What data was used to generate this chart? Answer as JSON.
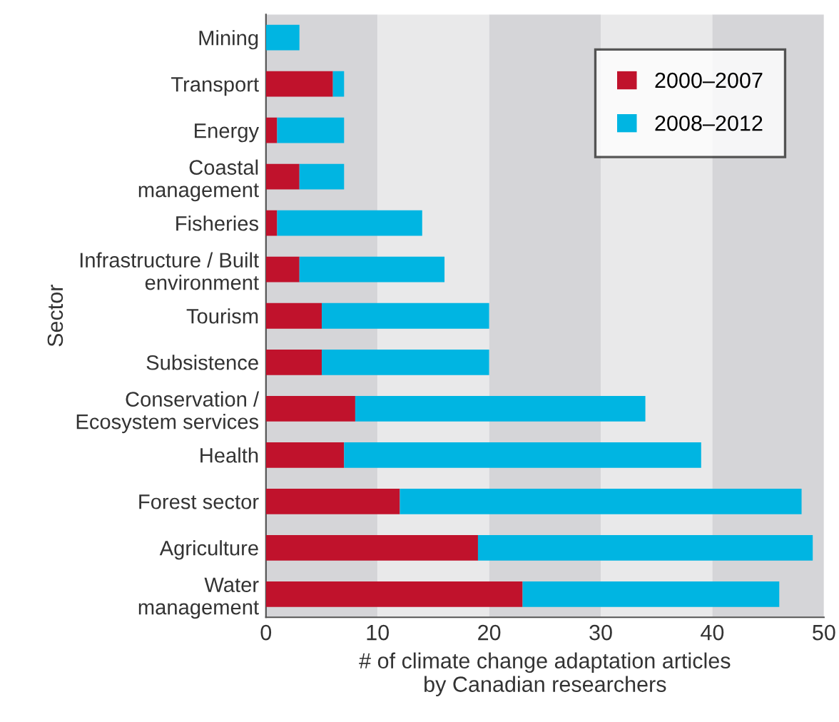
{
  "chart_data": {
    "type": "bar",
    "orientation": "horizontal",
    "stacked": true,
    "xlabel": "# of climate change adaptation articles\nby Canadian researchers",
    "ylabel": "Sector",
    "categories": [
      "Mining",
      "Transport",
      "Energy",
      "Coastal\nmanagement",
      "Fisheries",
      "Infrastructure / Built\nenvironment",
      "Tourism",
      "Subsistence",
      "Conservation /\nEcosystem services",
      "Health",
      "Forest sector",
      "Agriculture",
      "Water\nmanagement"
    ],
    "series": [
      {
        "name": "2000–2007",
        "color": "#c0122c",
        "values": [
          0,
          6,
          1,
          3,
          1,
          3,
          5,
          5,
          8,
          7,
          12,
          19,
          23
        ]
      },
      {
        "name": "2008–2012",
        "color": "#00b5e2",
        "values": [
          3,
          1,
          6,
          4,
          13,
          13,
          15,
          15,
          26,
          32,
          36,
          30,
          23
        ]
      }
    ],
    "xlim": [
      0,
      50
    ],
    "xticks": [
      0,
      10,
      20,
      30,
      40,
      50
    ],
    "bands": [
      {
        "axis": "x",
        "from": 0,
        "to": 10,
        "color": "#d5d5d8"
      },
      {
        "axis": "x",
        "from": 10,
        "to": 20,
        "color": "#e9e9ea"
      },
      {
        "axis": "x",
        "from": 20,
        "to": 30,
        "color": "#d5d5d8"
      },
      {
        "axis": "x",
        "from": 30,
        "to": 40,
        "color": "#e9e9ea"
      },
      {
        "axis": "x",
        "from": 40,
        "to": 50,
        "color": "#d5d5d8"
      }
    ],
    "grid": false,
    "legend": "top right"
  }
}
